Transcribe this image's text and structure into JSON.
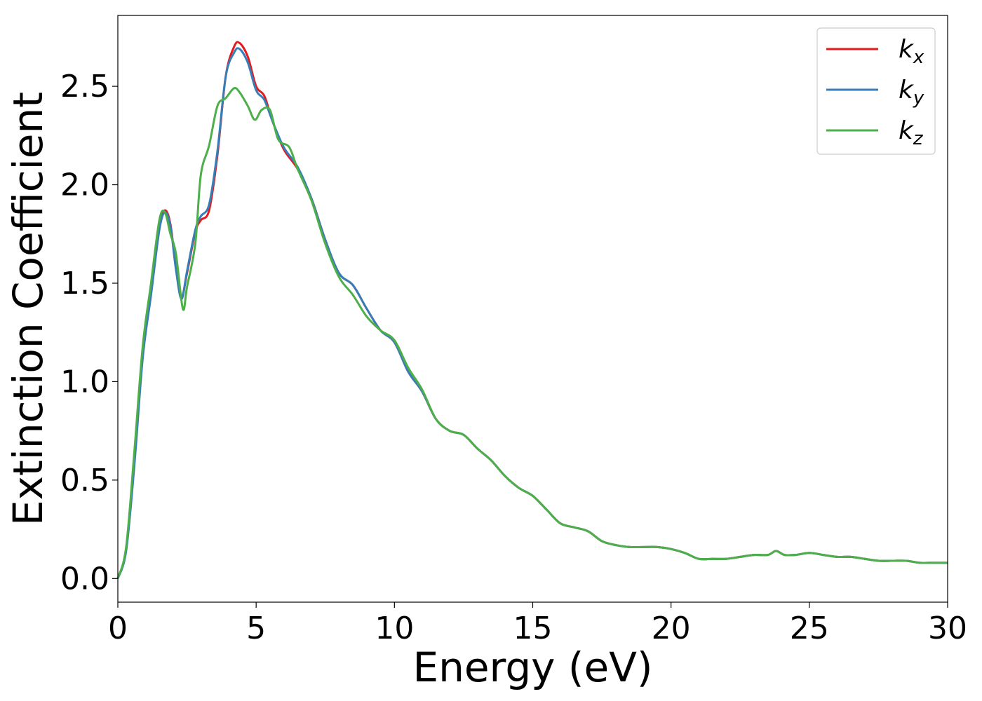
{
  "chart_data": {
    "type": "line",
    "title": "",
    "xlabel": "Energy (eV)",
    "ylabel": "Extinction Coefficient",
    "xlim": [
      0,
      30
    ],
    "ylim": [
      -0.12,
      2.86
    ],
    "xticks": [
      0,
      5,
      10,
      15,
      20,
      25,
      30
    ],
    "yticks": [
      0.0,
      0.5,
      1.0,
      1.5,
      2.0,
      2.5
    ],
    "xtick_labels": [
      "0",
      "5",
      "10",
      "15",
      "20",
      "25",
      "30"
    ],
    "ytick_labels": [
      "0.0",
      "0.5",
      "1.0",
      "1.5",
      "2.0",
      "2.5"
    ],
    "grid": false,
    "legend_position": "top-right",
    "series": [
      {
        "name": "k_x",
        "label_base": "k",
        "label_sub": "x",
        "color": "#e41a1c",
        "x": [
          0,
          0.3,
          0.6,
          0.9,
          1.2,
          1.5,
          1.7,
          1.9,
          2.1,
          2.3,
          2.5,
          2.8,
          3.0,
          3.3,
          3.6,
          3.9,
          4.2,
          4.4,
          4.7,
          5.0,
          5.3,
          5.6,
          6.0,
          6.5,
          7.0,
          7.5,
          8.0,
          8.5,
          9.0,
          9.5,
          10.0,
          10.5,
          11.0,
          11.5,
          12.0,
          12.5,
          13.0,
          13.5,
          14.0,
          14.5,
          15.0,
          15.5,
          16.0,
          16.5,
          17.0,
          17.5,
          18.0,
          18.5,
          19.0,
          19.5,
          20.0,
          20.5,
          21.0,
          21.5,
          22.0,
          22.5,
          23.0,
          23.5,
          23.8,
          24.1,
          24.5,
          25.0,
          25.5,
          26.0,
          26.5,
          27.0,
          27.5,
          28.0,
          28.5,
          29.0,
          29.5,
          30.0
        ],
        "values": [
          0.0,
          0.15,
          0.6,
          1.15,
          1.45,
          1.78,
          1.87,
          1.8,
          1.58,
          1.43,
          1.55,
          1.76,
          1.82,
          1.87,
          2.15,
          2.55,
          2.7,
          2.72,
          2.65,
          2.5,
          2.45,
          2.32,
          2.18,
          2.08,
          1.93,
          1.72,
          1.55,
          1.49,
          1.37,
          1.26,
          1.2,
          1.05,
          0.95,
          0.81,
          0.75,
          0.73,
          0.66,
          0.6,
          0.52,
          0.46,
          0.42,
          0.35,
          0.28,
          0.26,
          0.24,
          0.19,
          0.17,
          0.16,
          0.16,
          0.16,
          0.15,
          0.13,
          0.1,
          0.1,
          0.1,
          0.11,
          0.12,
          0.12,
          0.14,
          0.12,
          0.12,
          0.13,
          0.12,
          0.11,
          0.11,
          0.1,
          0.09,
          0.09,
          0.09,
          0.08,
          0.08,
          0.08
        ]
      },
      {
        "name": "k_y",
        "label_base": "k",
        "label_sub": "y",
        "color": "#377eb8",
        "x": [
          0,
          0.3,
          0.6,
          0.9,
          1.2,
          1.5,
          1.7,
          1.9,
          2.1,
          2.3,
          2.5,
          2.8,
          3.0,
          3.3,
          3.6,
          3.9,
          4.2,
          4.4,
          4.7,
          5.0,
          5.3,
          5.6,
          6.0,
          6.5,
          7.0,
          7.5,
          8.0,
          8.5,
          9.0,
          9.5,
          10.0,
          10.5,
          11.0,
          11.5,
          12.0,
          12.5,
          13.0,
          13.5,
          14.0,
          14.5,
          15.0,
          15.5,
          16.0,
          16.5,
          17.0,
          17.5,
          18.0,
          18.5,
          19.0,
          19.5,
          20.0,
          20.5,
          21.0,
          21.5,
          22.0,
          22.5,
          23.0,
          23.5,
          23.8,
          24.1,
          24.5,
          25.0,
          25.5,
          26.0,
          26.5,
          27.0,
          27.5,
          28.0,
          28.5,
          29.0,
          29.5,
          30.0
        ],
        "values": [
          0.0,
          0.14,
          0.58,
          1.12,
          1.44,
          1.77,
          1.86,
          1.79,
          1.57,
          1.42,
          1.56,
          1.77,
          1.84,
          1.9,
          2.17,
          2.55,
          2.67,
          2.69,
          2.62,
          2.48,
          2.43,
          2.32,
          2.19,
          2.09,
          1.93,
          1.72,
          1.55,
          1.49,
          1.37,
          1.26,
          1.2,
          1.05,
          0.95,
          0.81,
          0.75,
          0.73,
          0.66,
          0.6,
          0.52,
          0.46,
          0.42,
          0.35,
          0.28,
          0.26,
          0.24,
          0.19,
          0.17,
          0.16,
          0.16,
          0.16,
          0.15,
          0.13,
          0.1,
          0.1,
          0.1,
          0.11,
          0.12,
          0.12,
          0.14,
          0.12,
          0.12,
          0.13,
          0.12,
          0.11,
          0.11,
          0.1,
          0.09,
          0.09,
          0.09,
          0.08,
          0.08,
          0.08
        ]
      },
      {
        "name": "k_z",
        "label_base": "k",
        "label_sub": "z",
        "color": "#4daf4a",
        "x": [
          0,
          0.3,
          0.6,
          0.9,
          1.2,
          1.5,
          1.7,
          1.9,
          2.1,
          2.35,
          2.5,
          2.8,
          3.0,
          3.3,
          3.6,
          3.9,
          4.2,
          4.4,
          4.7,
          4.95,
          5.2,
          5.5,
          5.8,
          6.2,
          6.5,
          7.0,
          7.5,
          8.0,
          8.5,
          9.0,
          9.5,
          10.0,
          10.5,
          11.0,
          11.5,
          12.0,
          12.5,
          13.0,
          13.5,
          14.0,
          14.5,
          15.0,
          15.5,
          16.0,
          16.5,
          17.0,
          17.5,
          18.0,
          18.5,
          19.0,
          19.5,
          20.0,
          20.5,
          21.0,
          21.5,
          22.0,
          22.5,
          23.0,
          23.5,
          23.8,
          24.1,
          24.5,
          25.0,
          25.5,
          26.0,
          26.5,
          27.0,
          27.5,
          28.0,
          28.5,
          29.0,
          29.5,
          30.0
        ],
        "values": [
          0.0,
          0.16,
          0.65,
          1.18,
          1.5,
          1.82,
          1.86,
          1.75,
          1.65,
          1.37,
          1.48,
          1.7,
          2.05,
          2.2,
          2.4,
          2.44,
          2.49,
          2.47,
          2.4,
          2.33,
          2.38,
          2.38,
          2.23,
          2.19,
          2.08,
          1.92,
          1.7,
          1.53,
          1.44,
          1.33,
          1.26,
          1.21,
          1.07,
          0.96,
          0.81,
          0.75,
          0.73,
          0.66,
          0.6,
          0.52,
          0.46,
          0.42,
          0.35,
          0.28,
          0.26,
          0.24,
          0.19,
          0.17,
          0.16,
          0.16,
          0.16,
          0.15,
          0.13,
          0.1,
          0.1,
          0.1,
          0.11,
          0.12,
          0.12,
          0.14,
          0.12,
          0.12,
          0.13,
          0.12,
          0.11,
          0.11,
          0.1,
          0.09,
          0.09,
          0.09,
          0.08,
          0.08,
          0.08
        ]
      }
    ]
  }
}
